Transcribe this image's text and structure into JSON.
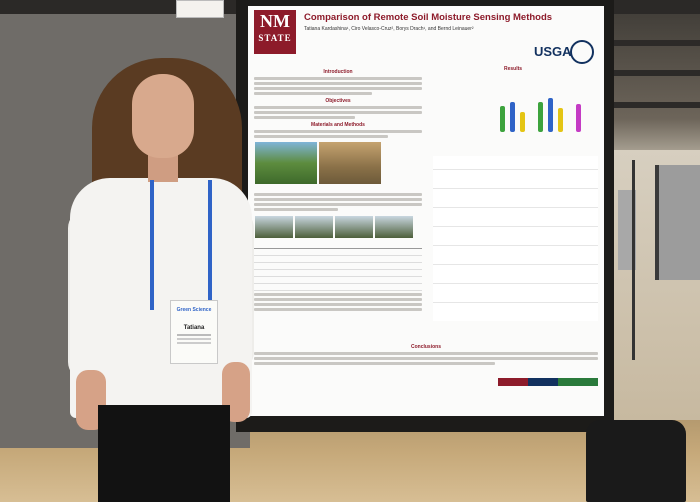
{
  "photo": {
    "scene": "poster-session"
  },
  "poster": {
    "logo_line1": "NM",
    "logo_line2": "STATE",
    "title": "Comparison of Remote Soil Moisture Sensing Methods",
    "authors": "Tatiana Kardashina¹, Ciro Velasco-Cruz², Borys Drach¹, and Bernd Leinauer²",
    "partner_logo": "USGA",
    "section_intro": "Introduction",
    "section_objectives": "Objectives",
    "section_methods": "Materials and Methods",
    "section_results": "Results",
    "section_conclusions": "Conclusions"
  },
  "badge": {
    "event": "Green Science",
    "name": "Tatiana"
  },
  "colors": {
    "nmsu_crimson": "#8d1b2a",
    "usga_blue": "#12315f",
    "lanyard_blue": "#2f63c7"
  }
}
